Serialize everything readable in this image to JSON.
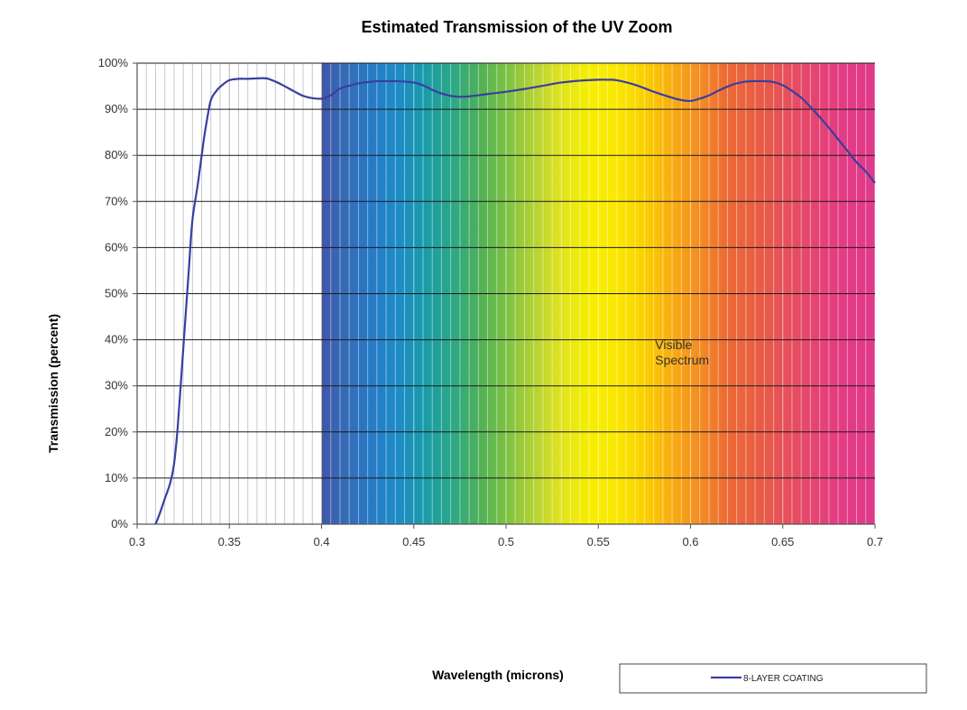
{
  "chart_data": {
    "type": "line",
    "title": "Estimated  Transmission  of the UV Zoom",
    "xlabel": "Wavelength (microns)",
    "ylabel": "Transmission  (percent)",
    "xlim": [
      0.3,
      0.7
    ],
    "ylim": [
      0,
      100
    ],
    "x_ticks": [
      "0.3",
      "0.35",
      "0.4",
      "0.45",
      "0.5",
      "0.55",
      "0.6",
      "0.65",
      "0.7"
    ],
    "x_tick_values": [
      0.3,
      0.35,
      0.4,
      0.45,
      0.5,
      0.55,
      0.6,
      0.65,
      0.7
    ],
    "y_ticks": [
      "0%",
      "10%",
      "20%",
      "30%",
      "40%",
      "50%",
      "60%",
      "70%",
      "80%",
      "90%",
      "100%"
    ],
    "y_tick_values": [
      0,
      10,
      20,
      30,
      40,
      50,
      60,
      70,
      80,
      90,
      100
    ],
    "minor_x_gridlines": [
      0.305,
      0.31,
      0.315,
      0.32,
      0.325,
      0.33,
      0.335,
      0.34,
      0.345,
      0.355,
      0.36,
      0.365,
      0.37,
      0.375,
      0.38,
      0.385,
      0.39,
      0.395,
      0.405,
      0.41,
      0.415,
      0.42,
      0.425,
      0.43,
      0.435,
      0.44,
      0.445,
      0.455,
      0.46,
      0.465,
      0.47,
      0.475,
      0.48,
      0.485,
      0.49,
      0.495,
      0.505,
      0.51,
      0.515,
      0.52,
      0.525,
      0.53,
      0.535,
      0.54,
      0.545,
      0.555,
      0.56,
      0.565,
      0.57,
      0.575,
      0.58,
      0.585,
      0.59,
      0.595,
      0.605,
      0.61,
      0.615,
      0.62,
      0.625,
      0.63,
      0.635,
      0.64,
      0.645,
      0.655,
      0.66,
      0.665,
      0.67,
      0.675,
      0.68,
      0.685,
      0.69,
      0.695
    ],
    "visible_band": {
      "start": 0.4,
      "end": 0.7,
      "label_line1": "Visible",
      "label_line2": "Spectrum",
      "label_x": 0.595,
      "label_y": 38,
      "color_stops": [
        {
          "x": 0.4,
          "color": "#3f56a6"
        },
        {
          "x": 0.41,
          "color": "#3868b4"
        },
        {
          "x": 0.425,
          "color": "#2878c4"
        },
        {
          "x": 0.44,
          "color": "#1e8bc8"
        },
        {
          "x": 0.455,
          "color": "#1a9aab"
        },
        {
          "x": 0.47,
          "color": "#2aa78a"
        },
        {
          "x": 0.485,
          "color": "#4db05a"
        },
        {
          "x": 0.5,
          "color": "#7cc142"
        },
        {
          "x": 0.515,
          "color": "#b3d235"
        },
        {
          "x": 0.53,
          "color": "#e2e41e"
        },
        {
          "x": 0.545,
          "color": "#f6ee00"
        },
        {
          "x": 0.56,
          "color": "#fae800"
        },
        {
          "x": 0.575,
          "color": "#fbd000"
        },
        {
          "x": 0.59,
          "color": "#f8ad12"
        },
        {
          "x": 0.605,
          "color": "#f38c24"
        },
        {
          "x": 0.62,
          "color": "#ec6a34"
        },
        {
          "x": 0.64,
          "color": "#e85a48"
        },
        {
          "x": 0.66,
          "color": "#e64a68"
        },
        {
          "x": 0.68,
          "color": "#e43c82"
        },
        {
          "x": 0.7,
          "color": "#e03a8c"
        }
      ]
    },
    "series": [
      {
        "name": "8-LAYER COATING",
        "color": "#3a3ea0",
        "x": [
          0.31,
          0.312,
          0.315,
          0.318,
          0.32,
          0.322,
          0.325,
          0.328,
          0.33,
          0.333,
          0.336,
          0.338,
          0.34,
          0.343,
          0.346,
          0.35,
          0.355,
          0.36,
          0.365,
          0.37,
          0.375,
          0.38,
          0.385,
          0.39,
          0.395,
          0.4,
          0.405,
          0.41,
          0.415,
          0.42,
          0.425,
          0.43,
          0.435,
          0.44,
          0.445,
          0.45,
          0.455,
          0.46,
          0.465,
          0.47,
          0.475,
          0.48,
          0.49,
          0.5,
          0.51,
          0.52,
          0.53,
          0.54,
          0.55,
          0.555,
          0.56,
          0.57,
          0.58,
          0.59,
          0.595,
          0.6,
          0.605,
          0.61,
          0.615,
          0.62,
          0.625,
          0.63,
          0.635,
          0.64,
          0.645,
          0.65,
          0.655,
          0.66,
          0.665,
          0.67,
          0.675,
          0.68,
          0.685,
          0.69,
          0.695,
          0.7
        ],
        "values": [
          0,
          2,
          5.5,
          9,
          13,
          21,
          38,
          55,
          66,
          74,
          83,
          88,
          92,
          94,
          95.2,
          96.3,
          96.6,
          96.6,
          96.7,
          96.7,
          96,
          95,
          93.9,
          92.9,
          92.4,
          92.3,
          93,
          94.5,
          95.1,
          95.6,
          95.9,
          96.1,
          96.1,
          96.1,
          96,
          95.8,
          95.2,
          94.2,
          93.4,
          92.9,
          92.7,
          92.8,
          93.3,
          93.8,
          94.4,
          95.1,
          95.8,
          96.2,
          96.4,
          96.4,
          96.3,
          95.3,
          93.8,
          92.5,
          92,
          91.8,
          92.3,
          93,
          94,
          94.9,
          95.6,
          96,
          96.1,
          96.1,
          95.9,
          95.2,
          94,
          92.5,
          90.5,
          88.3,
          86,
          83.5,
          81,
          78.5,
          76.5,
          74
        ]
      }
    ],
    "legend": {
      "placement": "bottom-right",
      "entry": "8-LAYER COATING"
    }
  }
}
